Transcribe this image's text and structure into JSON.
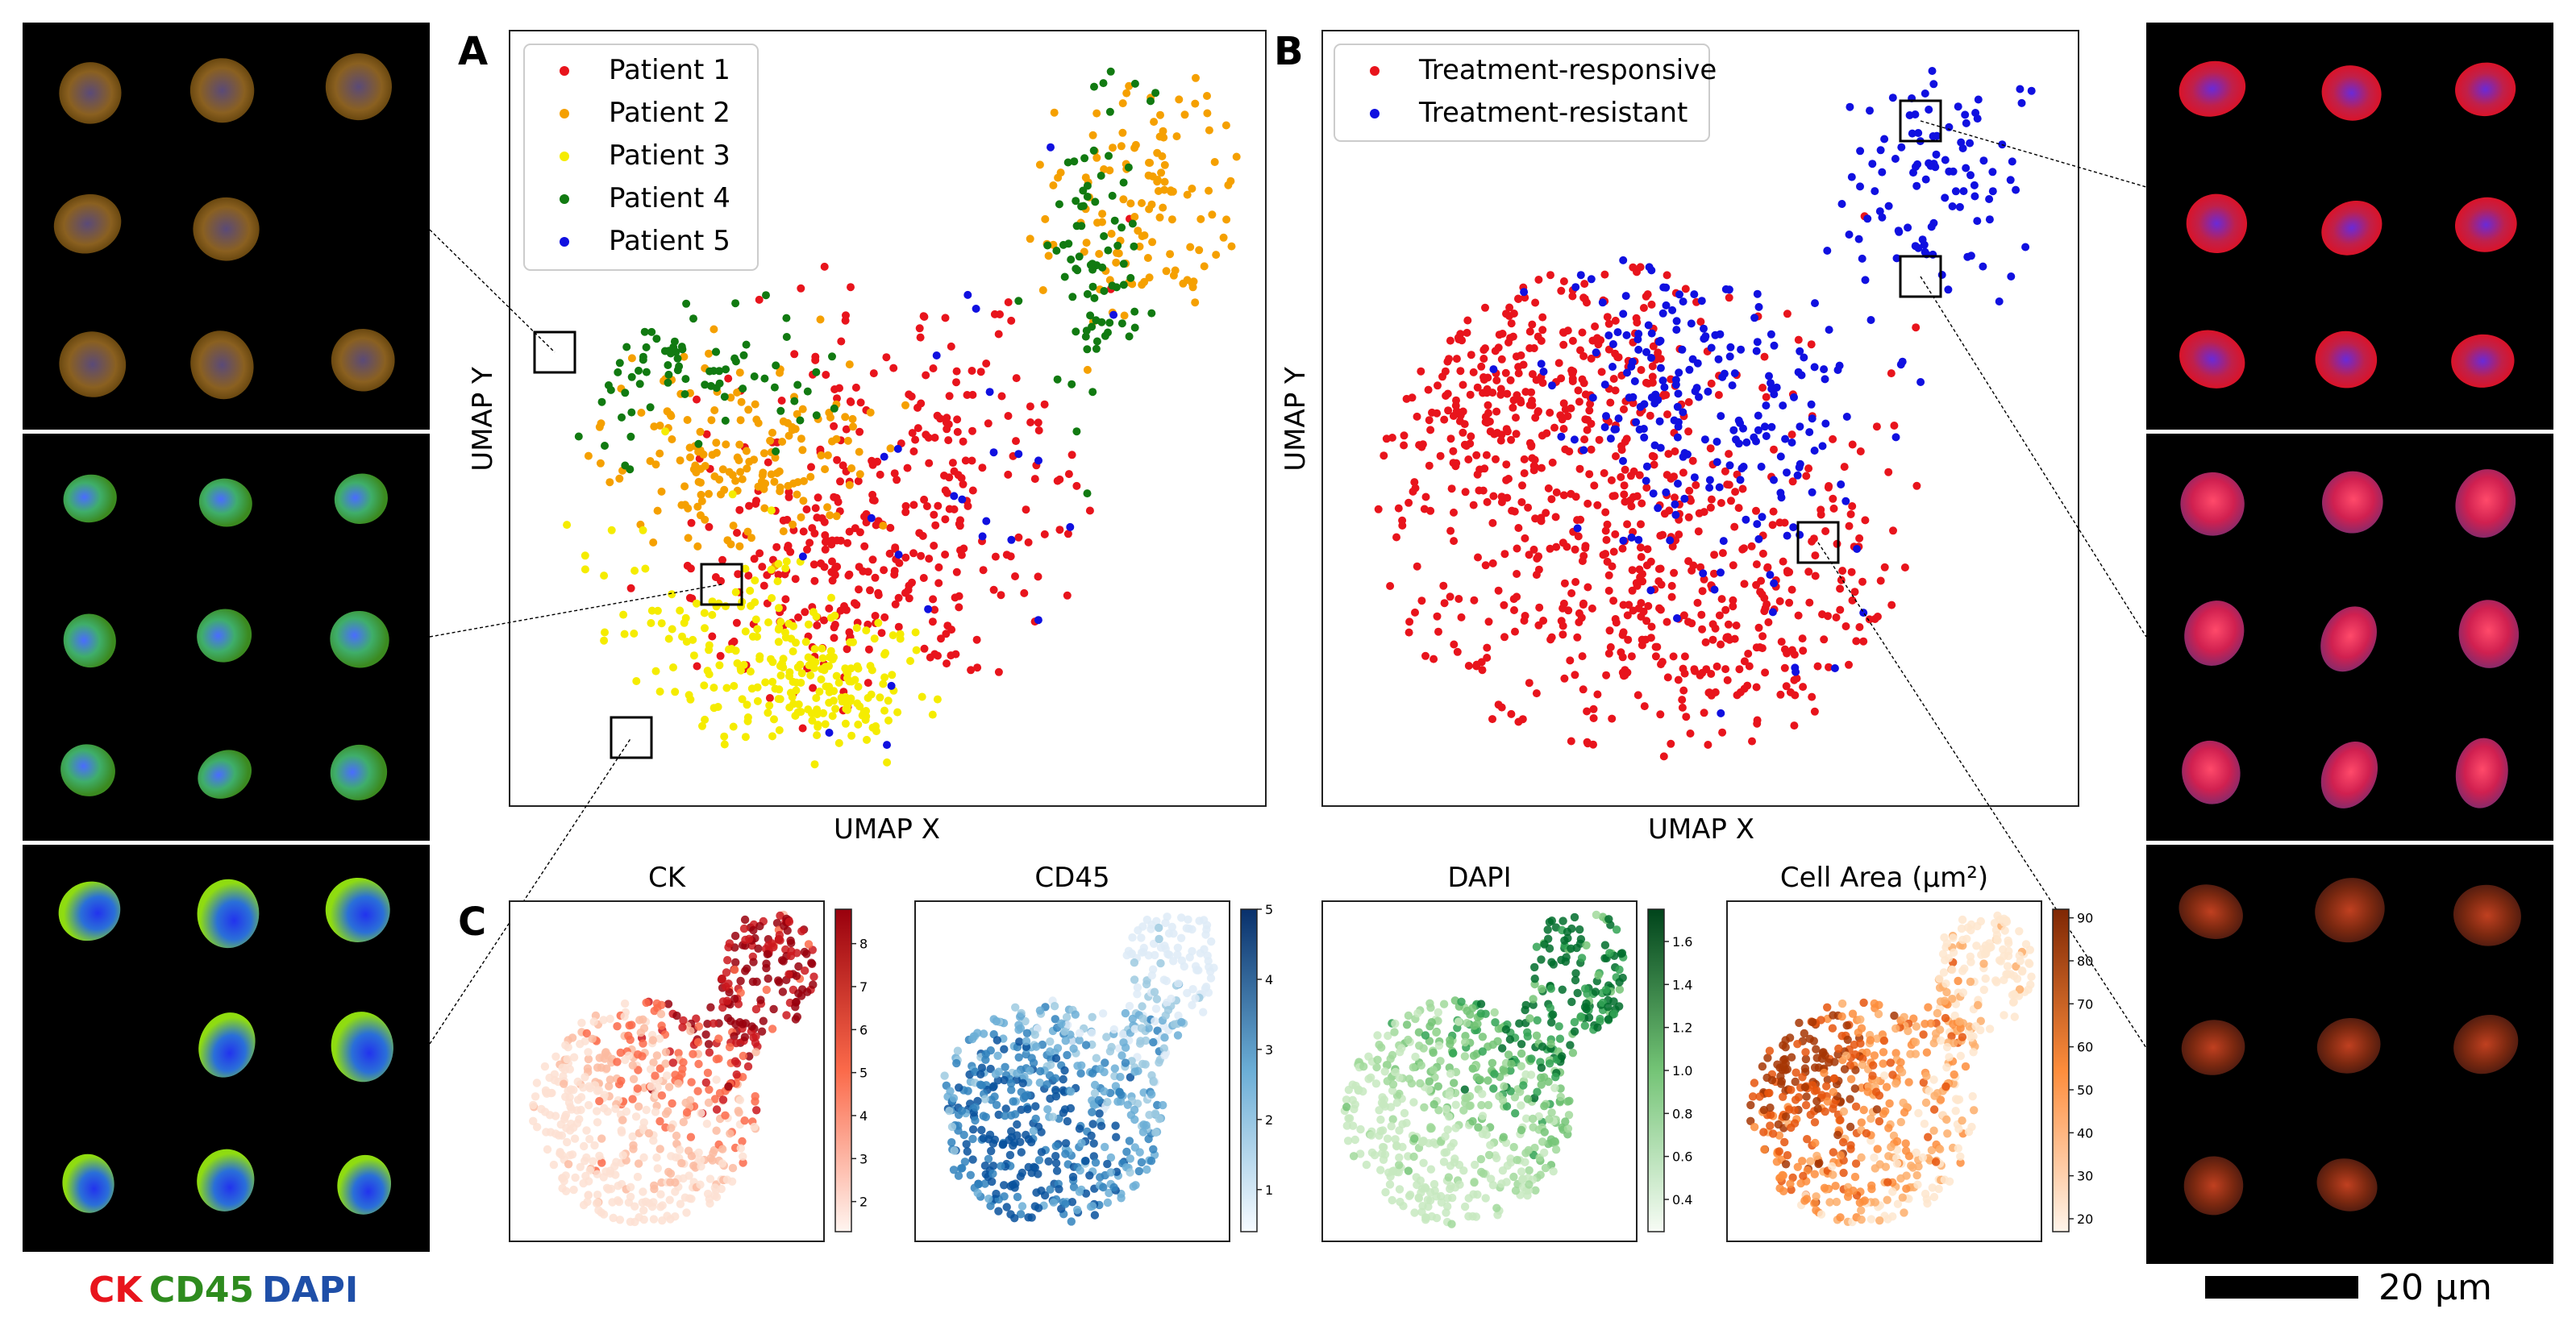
{
  "panel_letters": {
    "a": "A",
    "b": "B",
    "c": "C"
  },
  "channel_legend": {
    "ck": "CK",
    "cd45": "CD45",
    "dapi": "DAPI",
    "ck_color": "#e8141c",
    "cd45_color": "#2e8b1e",
    "dapi_color": "#1f4fa8"
  },
  "scale_bar": {
    "label": "20 µm",
    "color": "#000000"
  },
  "colors": {
    "patient1": "#e8141c",
    "patient2": "#f5a000",
    "patient3": "#f5ec00",
    "patient4": "#117a11",
    "patient5": "#1010e0",
    "responsive": "#e8141c",
    "resistant": "#1010e0"
  },
  "chart_data": [
    {
      "id": "A",
      "type": "scatter",
      "title": "",
      "xlabel": "UMAP X",
      "ylabel": "UMAP Y",
      "legend_position": "top-left",
      "series": [
        {
          "name": "Patient 1",
          "color": "#e8141c",
          "cluster": "center-right",
          "approx_points": 380
        },
        {
          "name": "Patient 2",
          "color": "#f5a000",
          "cluster": "top-right",
          "approx_points": 300
        },
        {
          "name": "Patient 3",
          "color": "#f5ec00",
          "cluster": "bottom-left",
          "approx_points": 260
        },
        {
          "name": "Patient 4",
          "color": "#117a11",
          "cluster": "upper-left",
          "approx_points": 160
        },
        {
          "name": "Patient 5",
          "color": "#1010e0",
          "cluster": "sparse",
          "approx_points": 25
        }
      ]
    },
    {
      "id": "B",
      "type": "scatter",
      "title": "",
      "xlabel": "UMAP X",
      "ylabel": "UMAP Y",
      "legend_position": "top-left",
      "series": [
        {
          "name": "Treatment-responsive",
          "color": "#e8141c",
          "approx_points": 820
        },
        {
          "name": "Treatment-resistant",
          "color": "#1010e0",
          "approx_points": 330
        }
      ]
    },
    {
      "id": "C-CK",
      "type": "scatter",
      "title": "CK",
      "colormap": "Reds",
      "colorbar_ticks": [
        "2",
        "3",
        "4",
        "5",
        "6",
        "7",
        "8"
      ],
      "range": [
        1.3,
        8.8
      ]
    },
    {
      "id": "C-CD45",
      "type": "scatter",
      "title": "CD45",
      "colormap": "Blues",
      "colorbar_ticks": [
        "1",
        "2",
        "3",
        "4",
        "5"
      ],
      "range": [
        0.4,
        5
      ]
    },
    {
      "id": "C-DAPI",
      "type": "scatter",
      "title": "DAPI",
      "colormap": "Greens",
      "colorbar_ticks": [
        "0.4",
        "0.6",
        "0.8",
        "1.0",
        "1.2",
        "1.4",
        "1.6"
      ],
      "range": [
        0.25,
        1.75
      ]
    },
    {
      "id": "C-Area",
      "type": "scatter",
      "title": "Cell Area",
      "title_unit": "(µm²)",
      "colormap": "Oranges",
      "colorbar_ticks": [
        "20",
        "30",
        "40",
        "50",
        "60",
        "70",
        "80",
        "90"
      ],
      "range": [
        17,
        92
      ]
    }
  ]
}
